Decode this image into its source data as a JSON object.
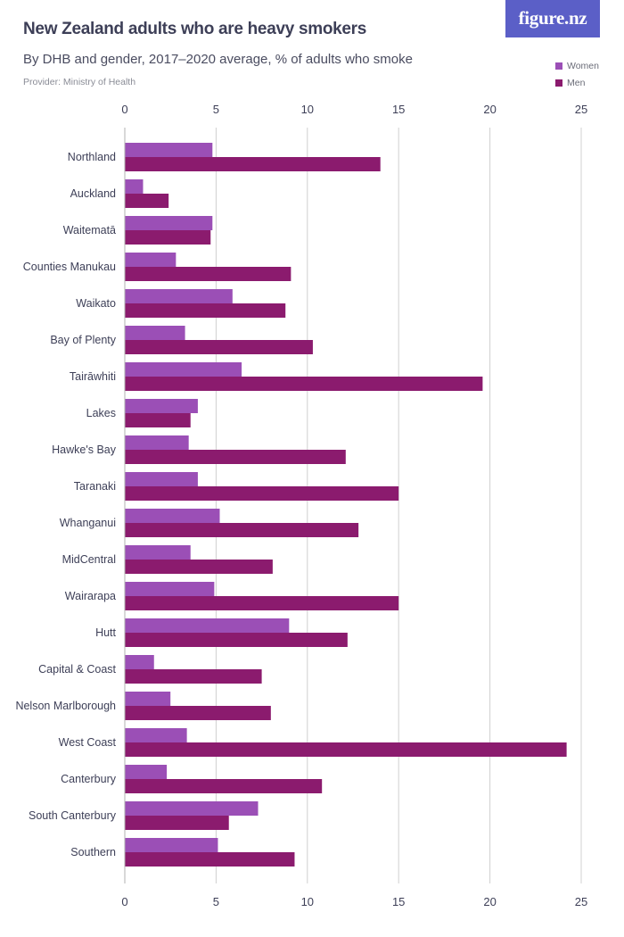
{
  "header": {
    "title": "New Zealand adults who are heavy smokers",
    "subtitle": "By DHB and gender, 2017–2020 average, % of adults who smoke",
    "provider": "Provider: Ministry of Health",
    "logo_text": "figure.nz"
  },
  "colors": {
    "women": "#9b4fb6",
    "men": "#8b1b6e",
    "brand": "#5b5fc7",
    "grid": "#d0d0d0"
  },
  "chart_data": {
    "type": "bar",
    "orientation": "horizontal",
    "title": "New Zealand adults who are heavy smokers",
    "subtitle": "By DHB and gender, 2017–2020 average, % of adults who smoke",
    "categories": [
      "Northland",
      "Auckland",
      "Waitematā",
      "Counties Manukau",
      "Waikato",
      "Bay of Plenty",
      "Tairāwhiti",
      "Lakes",
      "Hawke's Bay",
      "Taranaki",
      "Whanganui",
      "MidCentral",
      "Wairarapa",
      "Hutt",
      "Capital & Coast",
      "Nelson Marlborough",
      "West Coast",
      "Canterbury",
      "South Canterbury",
      "Southern"
    ],
    "series": [
      {
        "name": "Women",
        "values": [
          4.8,
          1.0,
          4.8,
          2.8,
          5.9,
          3.3,
          6.4,
          4.0,
          3.5,
          4.0,
          5.2,
          3.6,
          4.9,
          9.0,
          1.6,
          2.5,
          3.4,
          2.3,
          7.3,
          5.1
        ]
      },
      {
        "name": "Men",
        "values": [
          14.0,
          2.4,
          4.7,
          9.1,
          8.8,
          10.3,
          19.6,
          3.6,
          12.1,
          15.0,
          12.8,
          8.1,
          15.0,
          12.2,
          7.5,
          8.0,
          24.2,
          10.8,
          5.7,
          9.3
        ]
      }
    ],
    "xlim": [
      0,
      25
    ],
    "xticks": [
      0,
      5,
      10,
      15,
      20,
      25
    ],
    "xtick_labels": [
      "0",
      "5",
      "10",
      "15",
      "20",
      "25"
    ],
    "xlabel": "",
    "ylabel": "",
    "grid": true,
    "legend_position": "top-right"
  }
}
